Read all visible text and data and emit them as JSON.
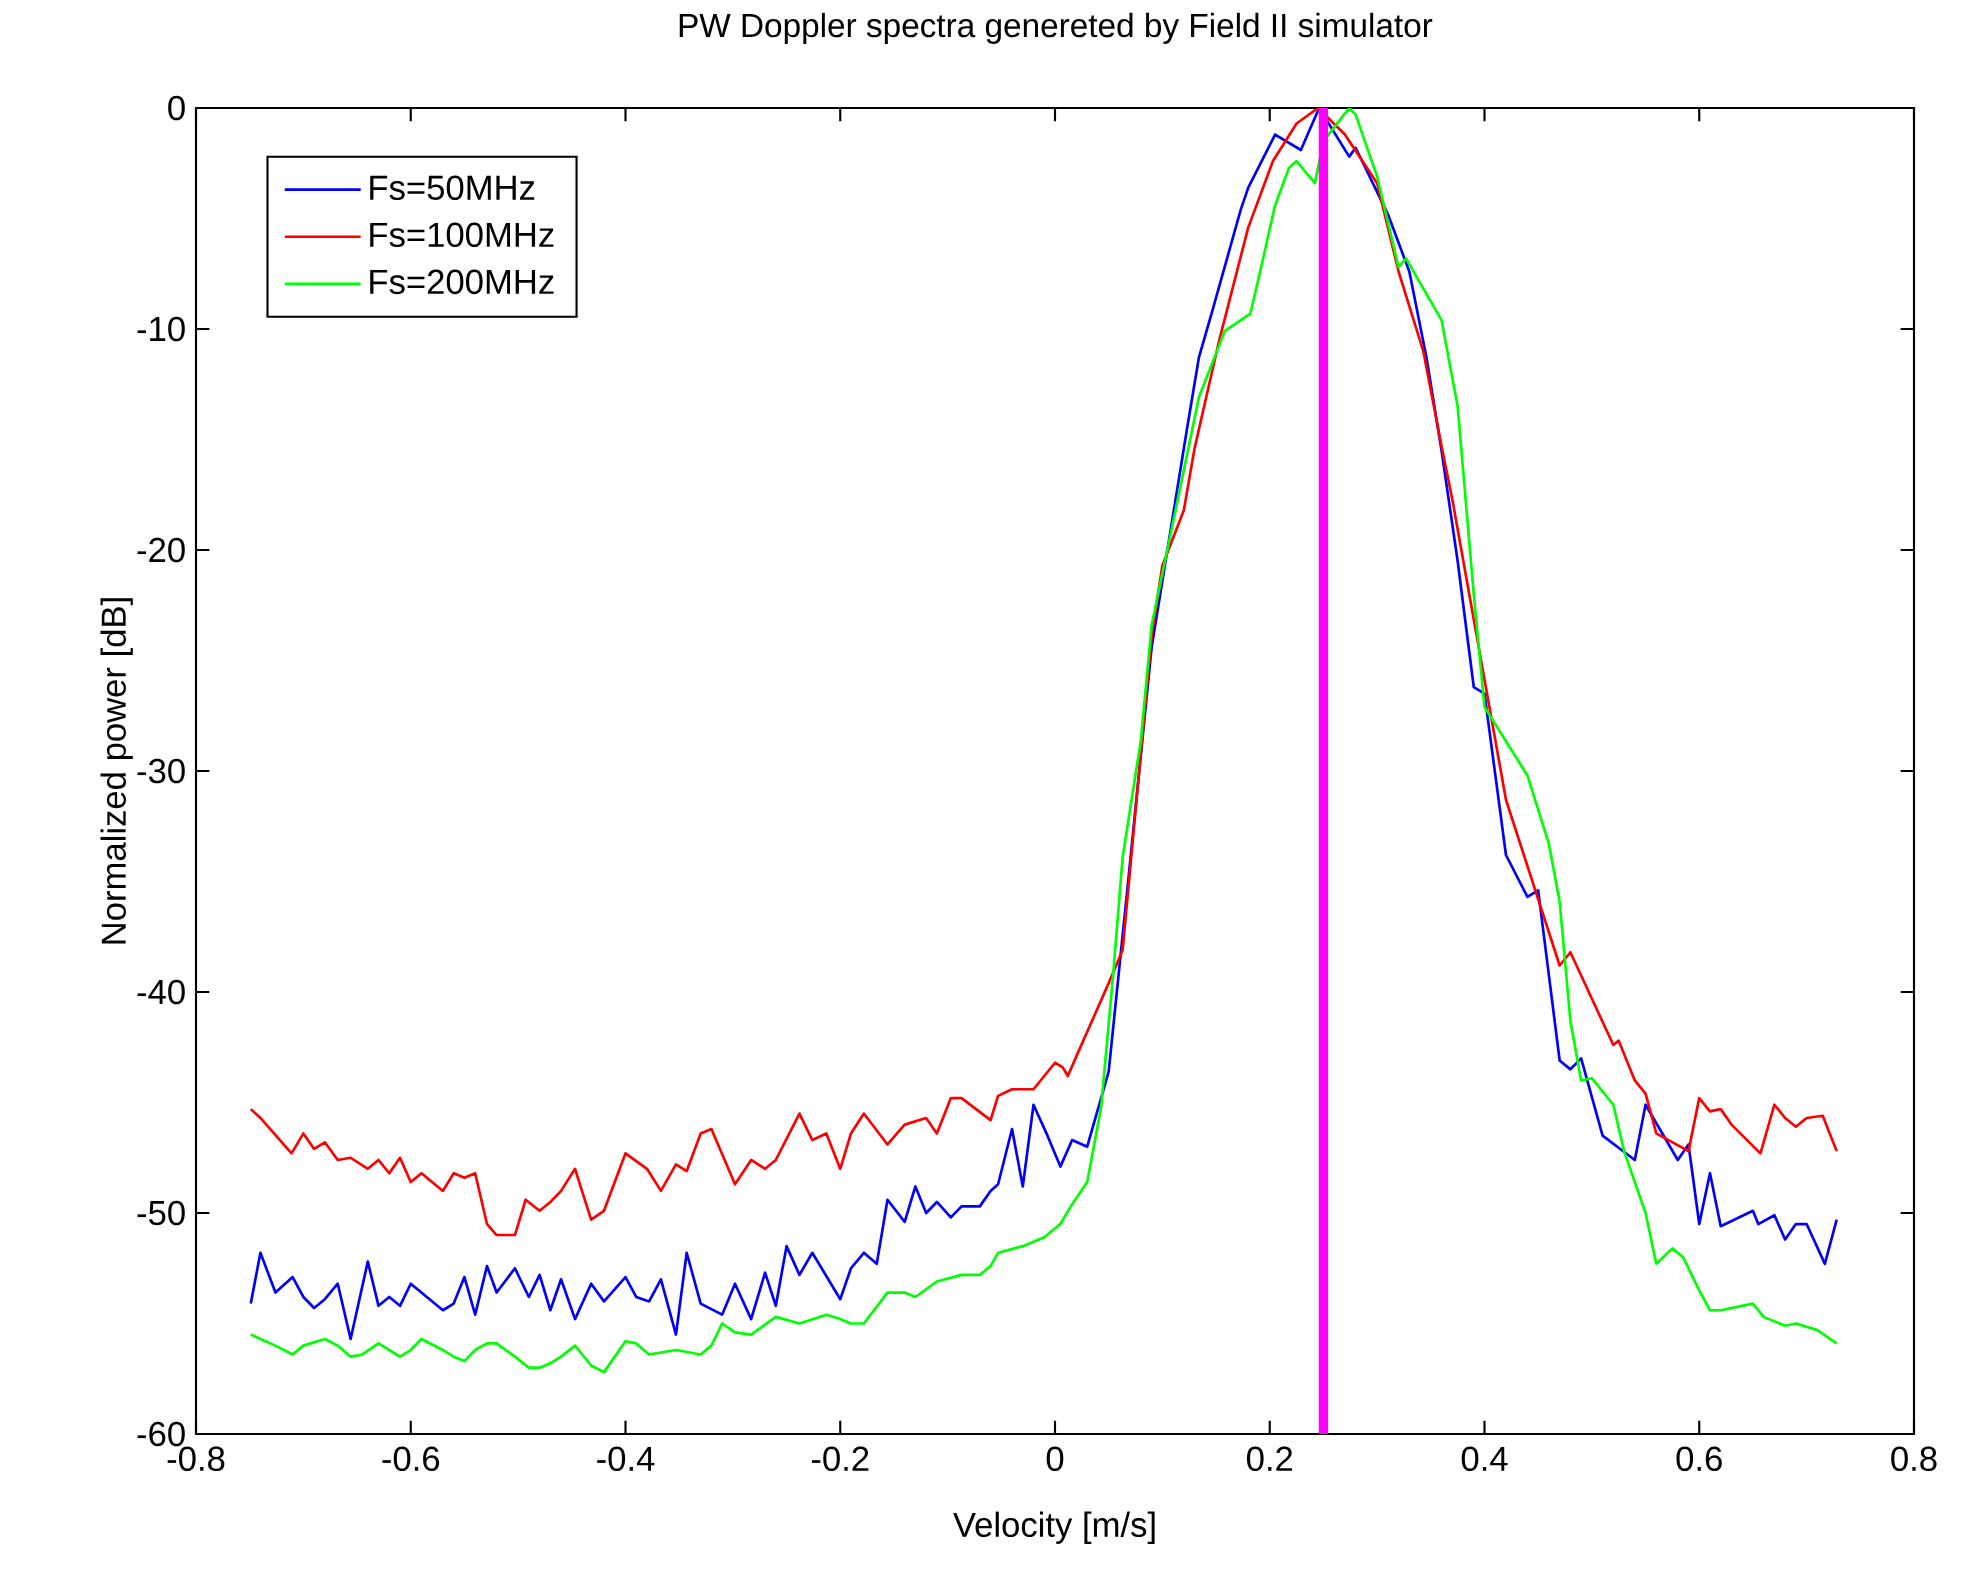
{
  "chart_data": {
    "type": "line",
    "title": "PW Doppler spectra genereted by Field II simulator",
    "xlabel": "Velocity [m/s]",
    "ylabel": "Normalized power [dB]",
    "xlim": [
      -0.8,
      0.8
    ],
    "ylim": [
      -60,
      0
    ],
    "xticks": [
      -0.8,
      -0.6,
      -0.4,
      -0.2,
      0,
      0.2,
      0.4,
      0.6,
      0.8
    ],
    "yticks": [
      -60,
      -50,
      -40,
      -30,
      -20,
      -10,
      0
    ],
    "legend": "top left",
    "ref_lines": [
      {
        "axis": "x",
        "value": 0.25,
        "color": "#ff00ff"
      }
    ],
    "series": [
      {
        "name": "Fs=50MHz",
        "color": "#0000ff",
        "x": [
          -0.749,
          -0.74,
          -0.726,
          -0.71,
          -0.7,
          -0.69,
          -0.68,
          -0.668,
          -0.656,
          -0.64,
          -0.63,
          -0.62,
          -0.61,
          -0.6,
          -0.57,
          -0.56,
          -0.55,
          -0.54,
          -0.529,
          -0.52,
          -0.503,
          -0.49,
          -0.48,
          -0.47,
          -0.46,
          -0.447,
          -0.432,
          -0.42,
          -0.4,
          -0.39,
          -0.378,
          -0.367,
          -0.353,
          -0.343,
          -0.33,
          -0.31,
          -0.298,
          -0.283,
          -0.27,
          -0.26,
          -0.25,
          -0.238,
          -0.226,
          -0.2,
          -0.19,
          -0.178,
          -0.166,
          -0.156,
          -0.14,
          -0.13,
          -0.12,
          -0.11,
          -0.097,
          -0.087,
          -0.07,
          -0.06,
          -0.053,
          -0.04,
          -0.03,
          -0.02,
          -0.007,
          0.005,
          0.016,
          0.03,
          0.05,
          0.07,
          0.09,
          0.123,
          0.134,
          0.147,
          0.173,
          0.18,
          0.205,
          0.229,
          0.246,
          0.274,
          0.28,
          0.31,
          0.33,
          0.346,
          0.36,
          0.375,
          0.39,
          0.4,
          0.42,
          0.44,
          0.45,
          0.47,
          0.48,
          0.49,
          0.51,
          0.54,
          0.55,
          0.58,
          0.59,
          0.6,
          0.61,
          0.62,
          0.65,
          0.655,
          0.67,
          0.68,
          0.69,
          0.7,
          0.717,
          0.728
        ],
        "values": [
          -54.1,
          -51.8,
          -53.6,
          -52.9,
          -53.8,
          -54.3,
          -53.9,
          -53.2,
          -55.7,
          -52.2,
          -54.2,
          -53.8,
          -54.2,
          -53.2,
          -54.4,
          -54.1,
          -52.9,
          -54.6,
          -52.4,
          -53.6,
          -52.5,
          -53.8,
          -52.8,
          -54.4,
          -53.0,
          -54.8,
          -53.2,
          -54.0,
          -52.9,
          -53.8,
          -54.0,
          -53.0,
          -55.5,
          -51.8,
          -54.1,
          -54.6,
          -53.2,
          -54.8,
          -52.7,
          -54.2,
          -51.5,
          -52.8,
          -51.8,
          -53.9,
          -52.5,
          -51.8,
          -52.3,
          -49.4,
          -50.4,
          -48.8,
          -50.0,
          -49.5,
          -50.2,
          -49.7,
          -49.7,
          -49.0,
          -48.7,
          -46.2,
          -48.8,
          -45.1,
          -46.5,
          -47.9,
          -46.7,
          -47.0,
          -43.6,
          -34.1,
          -24.4,
          -14.5,
          -11.3,
          -9.1,
          -4.6,
          -3.6,
          -1.2,
          -1.9,
          0,
          -2.2,
          -1.8,
          -4.8,
          -7.4,
          -11.3,
          -15.5,
          -20.5,
          -26.2,
          -26.5,
          -33.8,
          -35.7,
          -35.4,
          -43.1,
          -43.5,
          -43.0,
          -46.5,
          -47.6,
          -45.1,
          -47.6,
          -46.9,
          -50.5,
          -48.2,
          -50.6,
          -49.9,
          -50.5,
          -50.1,
          -51.2,
          -50.5,
          -50.5,
          -52.3,
          -50.3
        ]
      },
      {
        "name": "Fs=100MHz",
        "color": "#ff0000",
        "x": [
          -0.749,
          -0.74,
          -0.711,
          -0.7,
          -0.69,
          -0.68,
          -0.668,
          -0.656,
          -0.64,
          -0.63,
          -0.62,
          -0.61,
          -0.6,
          -0.59,
          -0.57,
          -0.56,
          -0.55,
          -0.54,
          -0.529,
          -0.52,
          -0.503,
          -0.493,
          -0.48,
          -0.47,
          -0.46,
          -0.447,
          -0.432,
          -0.42,
          -0.4,
          -0.38,
          -0.367,
          -0.353,
          -0.343,
          -0.33,
          -0.32,
          -0.298,
          -0.283,
          -0.27,
          -0.26,
          -0.238,
          -0.226,
          -0.213,
          -0.2,
          -0.19,
          -0.178,
          -0.156,
          -0.14,
          -0.12,
          -0.11,
          -0.097,
          -0.087,
          -0.06,
          -0.053,
          -0.04,
          -0.02,
          0.0,
          0.007,
          0.012,
          0.02,
          0.05,
          0.063,
          0.09,
          0.1,
          0.12,
          0.13,
          0.153,
          0.18,
          0.203,
          0.225,
          0.245,
          0.27,
          0.3,
          0.32,
          0.343,
          0.36,
          0.37,
          0.42,
          0.47,
          0.48,
          0.52,
          0.525,
          0.54,
          0.55,
          0.56,
          0.59,
          0.6,
          0.61,
          0.62,
          0.63,
          0.657,
          0.67,
          0.68,
          0.69,
          0.7,
          0.715,
          0.728
        ],
        "values": [
          -45.3,
          -45.7,
          -47.3,
          -46.4,
          -47.1,
          -46.8,
          -47.6,
          -47.5,
          -48.0,
          -47.6,
          -48.2,
          -47.5,
          -48.6,
          -48.2,
          -49.0,
          -48.2,
          -48.4,
          -48.2,
          -50.5,
          -51.0,
          -51.0,
          -49.4,
          -49.9,
          -49.5,
          -49.0,
          -48.0,
          -50.3,
          -49.9,
          -47.3,
          -48.0,
          -49.0,
          -47.8,
          -48.1,
          -46.4,
          -46.2,
          -48.7,
          -47.6,
          -48.0,
          -47.6,
          -45.5,
          -46.7,
          -46.4,
          -48.0,
          -46.4,
          -45.5,
          -46.9,
          -46.0,
          -45.7,
          -46.4,
          -44.8,
          -44.8,
          -45.8,
          -44.7,
          -44.4,
          -44.4,
          -43.2,
          -43.4,
          -43.8,
          -42.9,
          -39.6,
          -38.1,
          -23.9,
          -20.7,
          -18.2,
          -15.4,
          -10.5,
          -5.4,
          -2.4,
          -0.7,
          0,
          -1.2,
          -3.4,
          -7.4,
          -11.0,
          -15.3,
          -17.7,
          -31.3,
          -38.8,
          -38.2,
          -42.4,
          -42.2,
          -44.0,
          -44.6,
          -46.4,
          -47.2,
          -44.8,
          -45.4,
          -45.3,
          -46.0,
          -47.3,
          -45.1,
          -45.7,
          -46.1,
          -45.7,
          -45.6,
          -47.2
        ]
      },
      {
        "name": "Fs=200MHz",
        "color": "#00ff00",
        "x": [
          -0.749,
          -0.74,
          -0.726,
          -0.71,
          -0.7,
          -0.68,
          -0.668,
          -0.656,
          -0.645,
          -0.63,
          -0.61,
          -0.6,
          -0.59,
          -0.57,
          -0.56,
          -0.55,
          -0.54,
          -0.529,
          -0.52,
          -0.503,
          -0.49,
          -0.48,
          -0.47,
          -0.46,
          -0.447,
          -0.432,
          -0.42,
          -0.4,
          -0.39,
          -0.378,
          -0.353,
          -0.33,
          -0.32,
          -0.31,
          -0.298,
          -0.283,
          -0.26,
          -0.238,
          -0.213,
          -0.2,
          -0.19,
          -0.178,
          -0.156,
          -0.14,
          -0.13,
          -0.11,
          -0.087,
          -0.07,
          -0.06,
          -0.053,
          -0.03,
          -0.01,
          0.005,
          0.016,
          0.03,
          0.043,
          0.054,
          0.063,
          0.08,
          0.09,
          0.108,
          0.134,
          0.158,
          0.182,
          0.192,
          0.205,
          0.218,
          0.225,
          0.242,
          0.25,
          0.274,
          0.28,
          0.3,
          0.32,
          0.327,
          0.334,
          0.36,
          0.375,
          0.39,
          0.4,
          0.44,
          0.46,
          0.47,
          0.48,
          0.49,
          0.5,
          0.52,
          0.53,
          0.55,
          0.56,
          0.575,
          0.585,
          0.6,
          0.61,
          0.62,
          0.65,
          0.66,
          0.68,
          0.69,
          0.71,
          0.728
        ],
        "values": [
          -55.5,
          -55.7,
          -56.0,
          -56.4,
          -56.0,
          -55.7,
          -56.0,
          -56.5,
          -56.4,
          -55.9,
          -56.5,
          -56.2,
          -55.7,
          -56.2,
          -56.5,
          -56.7,
          -56.2,
          -55.9,
          -55.9,
          -56.5,
          -57.0,
          -57.0,
          -56.8,
          -56.5,
          -56.0,
          -56.9,
          -57.2,
          -55.8,
          -55.9,
          -56.4,
          -56.2,
          -56.4,
          -56.0,
          -55.0,
          -55.4,
          -55.5,
          -54.7,
          -55.0,
          -54.6,
          -54.8,
          -55.0,
          -55.0,
          -53.6,
          -53.6,
          -53.8,
          -53.1,
          -52.8,
          -52.8,
          -52.4,
          -51.8,
          -51.5,
          -51.1,
          -50.5,
          -49.6,
          -48.6,
          -45.2,
          -39.3,
          -33.9,
          -28.6,
          -23.4,
          -19.2,
          -13.1,
          -10.1,
          -9.3,
          -7.2,
          -4.4,
          -2.7,
          -2.4,
          -3.4,
          -1.5,
          0,
          -0.3,
          -3.1,
          -7.2,
          -6.8,
          -7.4,
          -9.6,
          -13.5,
          -22.0,
          -27.1,
          -30.2,
          -33.3,
          -35.9,
          -41.3,
          -44.0,
          -43.9,
          -45.1,
          -47.2,
          -50.0,
          -52.3,
          -51.6,
          -52.0,
          -53.5,
          -54.4,
          -54.4,
          -54.1,
          -54.7,
          -55.1,
          -55.0,
          -55.3,
          -55.9
        ]
      }
    ]
  }
}
